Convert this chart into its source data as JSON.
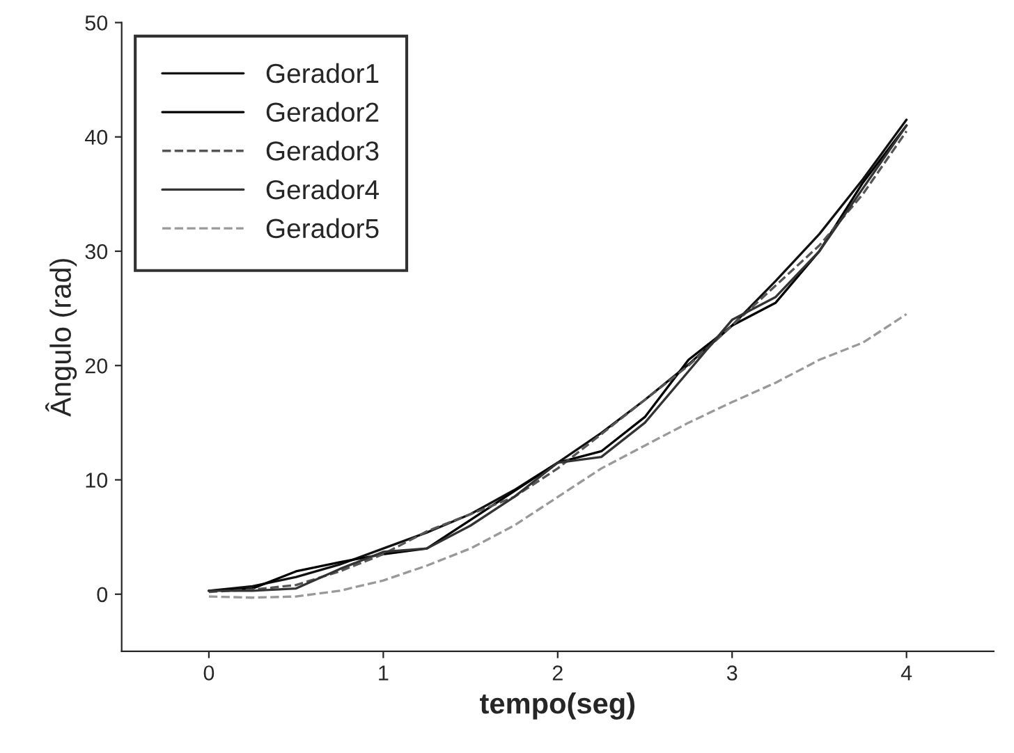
{
  "chart_data": {
    "type": "line",
    "xlabel": "tempo(seg)",
    "ylabel": "Ângulo (rad)",
    "x": [
      0,
      0.25,
      0.5,
      0.75,
      1,
      1.25,
      1.5,
      1.75,
      2,
      2.25,
      2.5,
      2.75,
      3,
      3.25,
      3.5,
      3.75,
      4
    ],
    "series": [
      {
        "name": "Gerador1",
        "color": "#111111",
        "line_style": "solid",
        "values": [
          0.3,
          0.7,
          1.5,
          2.6,
          4,
          5.4,
          7,
          9.1,
          11.5,
          14.1,
          17,
          20.1,
          23.5,
          27.4,
          31.5,
          36.3,
          41.5
        ]
      },
      {
        "name": "Gerador2",
        "color": "#000000",
        "line_style": "solid",
        "values": [
          0.3,
          0.5,
          2,
          2.8,
          3.5,
          4,
          6.5,
          9,
          11.5,
          12.5,
          15.5,
          20.5,
          23.5,
          25.5,
          30,
          36,
          41
        ]
      },
      {
        "name": "Gerador3",
        "color": "#555555",
        "line_style": "dashed",
        "values": [
          0.2,
          0.4,
          0.8,
          2,
          3.5,
          5.5,
          7,
          8.5,
          11,
          14,
          17,
          20,
          23.5,
          27,
          30.5,
          35,
          40.5
        ]
      },
      {
        "name": "Gerador4",
        "color": "#333333",
        "line_style": "solid",
        "values": [
          0.3,
          0.3,
          0.5,
          2.2,
          3.7,
          4,
          6,
          8.5,
          11.5,
          12,
          15,
          19.5,
          24,
          26,
          30,
          35.5,
          41
        ]
      },
      {
        "name": "Gerador5",
        "color": "#999999",
        "line_style": "dashed",
        "values": [
          -0.2,
          -0.3,
          -0.2,
          0.3,
          1.2,
          2.5,
          4,
          6,
          8.5,
          11,
          13,
          15,
          16.8,
          18.5,
          20.5,
          22,
          24.5
        ]
      }
    ],
    "xlim": [
      -0.5,
      4.5
    ],
    "ylim": [
      -5,
      50
    ],
    "xticks": [
      0,
      1,
      2,
      3,
      4
    ],
    "yticks": [
      0,
      10,
      20,
      30,
      40,
      50
    ],
    "legend": "top left",
    "grid": false
  }
}
